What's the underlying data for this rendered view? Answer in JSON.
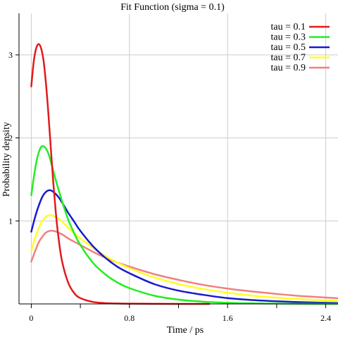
{
  "chart_data": {
    "type": "line",
    "title": "Fit Function (sigma = 0.1)",
    "xlabel": "Time / ps",
    "ylabel": "Probability density",
    "xlim": [
      -0.1,
      2.5
    ],
    "ylim": [
      0,
      3.5
    ],
    "x_ticks": [
      0,
      0.4,
      0.8,
      1.2,
      1.6,
      2.0,
      2.4
    ],
    "x_tick_labels": [
      "0",
      "",
      "0.8",
      "",
      "1.6",
      "",
      "2.4"
    ],
    "y_ticks": [
      1,
      2,
      3
    ],
    "y_tick_labels": [
      "1",
      "2",
      "3"
    ],
    "grid": true,
    "legend_position": "top-right",
    "series": [
      {
        "name": "tau = 0.1",
        "color": "#e31a1c",
        "x": [
          0,
          0.02,
          0.04,
          0.06,
          0.08,
          0.1,
          0.12,
          0.14,
          0.16,
          0.18,
          0.2,
          0.22,
          0.25,
          0.3,
          0.35,
          0.4,
          0.5,
          0.6,
          0.7,
          0.8,
          1.0,
          1.2,
          1.45
        ],
        "y": [
          2.62,
          2.92,
          3.08,
          3.13,
          3.08,
          2.93,
          2.65,
          2.28,
          1.86,
          1.45,
          1.1,
          0.82,
          0.52,
          0.26,
          0.13,
          0.07,
          0.025,
          0.01,
          0.005,
          0.003,
          0.001,
          0.0,
          0.0
        ]
      },
      {
        "name": "tau = 0.3",
        "color": "#22ee22",
        "x": [
          0,
          0.02,
          0.04,
          0.06,
          0.08,
          0.1,
          0.12,
          0.14,
          0.16,
          0.2,
          0.25,
          0.3,
          0.35,
          0.4,
          0.5,
          0.6,
          0.7,
          0.8,
          1.0,
          1.2,
          1.4,
          1.6,
          1.8,
          2.0,
          2.2,
          2.5
        ],
        "y": [
          1.31,
          1.52,
          1.7,
          1.82,
          1.89,
          1.9,
          1.87,
          1.81,
          1.71,
          1.49,
          1.24,
          1.02,
          0.85,
          0.71,
          0.5,
          0.36,
          0.26,
          0.19,
          0.1,
          0.052,
          0.027,
          0.014,
          0.007,
          0.004,
          0.002,
          0.001
        ]
      },
      {
        "name": "tau = 0.5",
        "color": "#1a1acc",
        "x": [
          0,
          0.03,
          0.06,
          0.09,
          0.12,
          0.15,
          0.18,
          0.22,
          0.26,
          0.3,
          0.35,
          0.4,
          0.5,
          0.6,
          0.7,
          0.8,
          1.0,
          1.2,
          1.4,
          1.6,
          1.8,
          2.0,
          2.2,
          2.5
        ],
        "y": [
          0.87,
          1.04,
          1.18,
          1.29,
          1.35,
          1.37,
          1.35,
          1.29,
          1.2,
          1.1,
          0.99,
          0.88,
          0.7,
          0.56,
          0.45,
          0.37,
          0.24,
          0.16,
          0.11,
          0.07,
          0.047,
          0.032,
          0.021,
          0.011
        ]
      },
      {
        "name": "tau = 0.7",
        "color": "#ffff22",
        "x": [
          0,
          0.03,
          0.06,
          0.09,
          0.12,
          0.15,
          0.18,
          0.22,
          0.26,
          0.3,
          0.35,
          0.4,
          0.5,
          0.6,
          0.7,
          0.8,
          1.0,
          1.2,
          1.4,
          1.6,
          1.8,
          2.0,
          2.2,
          2.5
        ],
        "y": [
          0.64,
          0.79,
          0.91,
          1.0,
          1.05,
          1.07,
          1.06,
          1.03,
          0.98,
          0.92,
          0.85,
          0.79,
          0.68,
          0.58,
          0.5,
          0.43,
          0.32,
          0.24,
          0.18,
          0.135,
          0.1,
          0.075,
          0.056,
          0.037
        ]
      },
      {
        "name": "tau = 0.9",
        "color": "#f08080",
        "x": [
          0,
          0.03,
          0.06,
          0.09,
          0.12,
          0.15,
          0.18,
          0.22,
          0.26,
          0.3,
          0.35,
          0.4,
          0.5,
          0.6,
          0.7,
          0.8,
          1.0,
          1.2,
          1.4,
          1.6,
          1.8,
          2.0,
          2.2,
          2.5
        ],
        "y": [
          0.51,
          0.63,
          0.74,
          0.81,
          0.86,
          0.88,
          0.88,
          0.86,
          0.83,
          0.79,
          0.75,
          0.71,
          0.63,
          0.56,
          0.5,
          0.45,
          0.36,
          0.29,
          0.23,
          0.185,
          0.15,
          0.12,
          0.095,
          0.068
        ]
      }
    ]
  }
}
